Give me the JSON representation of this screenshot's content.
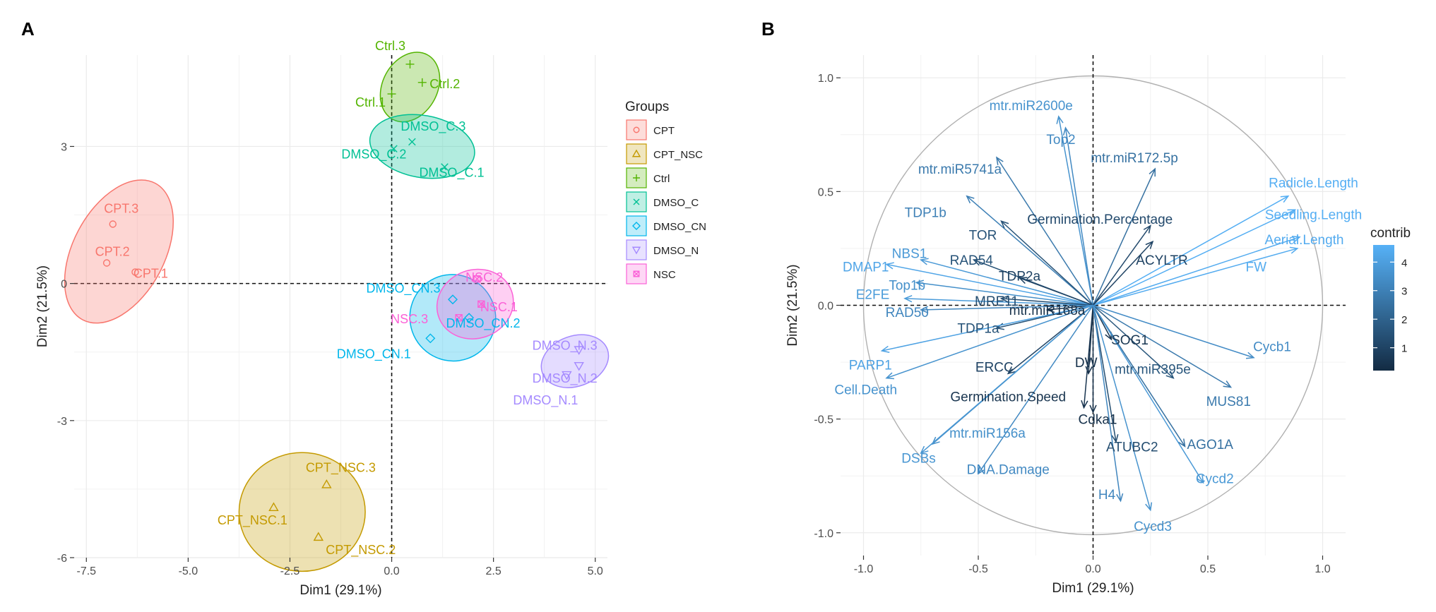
{
  "panel_labels": {
    "a": "A",
    "b": "B"
  },
  "chart_data": [
    {
      "type": "scatter",
      "panel": "A",
      "xlabel": "Dim1 (29.1%)",
      "ylabel": "Dim2 (21.5%)",
      "xlim": [
        -7.8,
        5.3
      ],
      "ylim": [
        -6.0,
        5.0
      ],
      "xticks": [
        -7.5,
        -5.0,
        -2.5,
        0.0,
        2.5,
        5.0
      ],
      "xtick_labels": [
        "-7.5",
        "-5.0",
        "-2.5",
        "0.0",
        "2.5",
        "5.0"
      ],
      "yticks": [
        -6,
        -3,
        0,
        3
      ],
      "ytick_labels": [
        "-6",
        "-3",
        "0",
        "3"
      ],
      "legend_title": "Groups",
      "groups": [
        {
          "name": "CPT",
          "color": "#F8766D",
          "shape": "circle",
          "ellipse": {
            "cx": -6.7,
            "cy": 0.7,
            "rx": 1.9,
            "ry": 1.0,
            "angle": -62
          },
          "points": [
            {
              "label": "CPT.3",
              "x": -6.85,
              "y": 1.3
            },
            {
              "label": "CPT.2",
              "x": -7.0,
              "y": 0.45
            },
            {
              "label": "CPT.1",
              "x": -6.3,
              "y": 0.25
            }
          ]
        },
        {
          "name": "CPT_NSC",
          "color": "#C49A00",
          "shape": "triangle",
          "ellipse": {
            "cx": -2.2,
            "cy": -5.0,
            "rx": 1.55,
            "ry": 1.3,
            "angle": 0
          },
          "points": [
            {
              "label": "CPT_NSC.3",
              "x": -1.6,
              "y": -4.4
            },
            {
              "label": "CPT_NSC.1",
              "x": -2.9,
              "y": -4.9
            },
            {
              "label": "CPT_NSC.2",
              "x": -1.8,
              "y": -5.55
            }
          ]
        },
        {
          "name": "Ctrl",
          "color": "#53B400",
          "shape": "plus",
          "ellipse": {
            "cx": 0.45,
            "cy": 4.3,
            "rx": 0.9,
            "ry": 0.6,
            "angle": -62
          },
          "points": [
            {
              "label": "Ctrl.3",
              "x": 0.45,
              "y": 4.8
            },
            {
              "label": "Ctrl.2",
              "x": 0.75,
              "y": 4.4
            },
            {
              "label": "Ctrl.1",
              "x": 0.0,
              "y": 4.15
            }
          ]
        },
        {
          "name": "DMSO_C",
          "color": "#00C094",
          "shape": "cross",
          "ellipse": {
            "cx": 0.75,
            "cy": 3.0,
            "rx": 1.3,
            "ry": 0.68,
            "angle": 10
          },
          "points": [
            {
              "label": "DMSO_C.3",
              "x": 0.5,
              "y": 3.1
            },
            {
              "label": "DMSO_C.2",
              "x": 0.05,
              "y": 2.95
            },
            {
              "label": "DMSO_C.1",
              "x": 1.3,
              "y": 2.55
            }
          ]
        },
        {
          "name": "DMSO_CN",
          "color": "#00B6EB",
          "shape": "diamond",
          "ellipse": {
            "cx": 1.5,
            "cy": -0.75,
            "rx": 1.05,
            "ry": 0.95,
            "angle": -30
          },
          "points": [
            {
              "label": "DMSO_CN.3",
              "x": 1.5,
              "y": -0.35
            },
            {
              "label": "DMSO_CN.2",
              "x": 1.9,
              "y": -0.75
            },
            {
              "label": "DMSO_CN.1",
              "x": 0.95,
              "y": -1.2
            }
          ]
        },
        {
          "name": "DMSO_N",
          "color": "#A58AFF",
          "shape": "triangle-down",
          "ellipse": {
            "cx": 4.5,
            "cy": -1.7,
            "rx": 0.85,
            "ry": 0.55,
            "angle": -20
          },
          "points": [
            {
              "label": "DMSO_N.3",
              "x": 4.6,
              "y": -1.45
            },
            {
              "label": "DMSO_N.2",
              "x": 4.6,
              "y": -1.8
            },
            {
              "label": "DMSO_N.1",
              "x": 4.3,
              "y": -2.0
            }
          ]
        },
        {
          "name": "NSC",
          "color": "#FB61D7",
          "shape": "square-cross",
          "ellipse": {
            "cx": 2.05,
            "cy": -0.45,
            "rx": 0.95,
            "ry": 0.75,
            "angle": -20
          },
          "points": [
            {
              "label": "NSC.2",
              "x": 2.1,
              "y": 0.1
            },
            {
              "label": "NSC.1",
              "x": 2.2,
              "y": -0.45
            },
            {
              "label": "NSC.3",
              "x": 1.65,
              "y": -0.75
            }
          ]
        }
      ]
    },
    {
      "type": "biplot",
      "panel": "B",
      "xlabel": "Dim1 (29.1%)",
      "ylabel": "Dim2 (21.5%)",
      "xlim": [
        -1.1,
        1.1
      ],
      "ylim": [
        -1.1,
        1.1
      ],
      "xticks": [
        -1.0,
        -0.5,
        0.0,
        0.5,
        1.0
      ],
      "xtick_labels": [
        "-1.0",
        "-0.5",
        "0.0",
        "0.5",
        "1.0"
      ],
      "yticks": [
        -1.0,
        -0.5,
        0.0,
        0.5,
        1.0
      ],
      "ytick_labels": [
        "-1.0",
        "-0.5",
        "0.0",
        "0.5",
        "1.0"
      ],
      "legend_title": "contrib",
      "legend_ticks": [
        1,
        2,
        3,
        4
      ],
      "legend_tick_labels": [
        "1",
        "2",
        "3",
        "4"
      ],
      "contrib_range": [
        0.2,
        4.6
      ],
      "color_low": "#132B43",
      "color_high": "#56B1F7",
      "variables": [
        {
          "name": "mtr.miR2600e",
          "x": -0.15,
          "y": 0.83,
          "contrib": 3.6,
          "lx": -0.27,
          "ly": 0.88
        },
        {
          "name": "Top2",
          "x": -0.12,
          "y": 0.78,
          "contrib": 3.3,
          "lx": -0.14,
          "ly": 0.73
        },
        {
          "name": "mtr.miR172.5p",
          "x": 0.27,
          "y": 0.6,
          "contrib": 2.5,
          "lx": 0.18,
          "ly": 0.65
        },
        {
          "name": "mtr.miR5741a",
          "x": -0.42,
          "y": 0.65,
          "contrib": 2.8,
          "lx": -0.58,
          "ly": 0.6
        },
        {
          "name": "Radicle.Length",
          "x": 0.85,
          "y": 0.48,
          "contrib": 4.5,
          "lx": 0.96,
          "ly": 0.54
        },
        {
          "name": "Seedling.Length",
          "x": 0.88,
          "y": 0.42,
          "contrib": 4.5,
          "lx": 0.96,
          "ly": 0.4
        },
        {
          "name": "Aerial.Length",
          "x": 0.9,
          "y": 0.3,
          "contrib": 4.4,
          "lx": 0.92,
          "ly": 0.29
        },
        {
          "name": "FW",
          "x": 0.89,
          "y": 0.25,
          "contrib": 4.4,
          "lx": 0.71,
          "ly": 0.17
        },
        {
          "name": "TDP1b",
          "x": -0.55,
          "y": 0.48,
          "contrib": 3.0,
          "lx": -0.73,
          "ly": 0.41
        },
        {
          "name": "Germination.Percentage",
          "x": 0.25,
          "y": 0.35,
          "contrib": 1.2,
          "lx": 0.03,
          "ly": 0.38
        },
        {
          "name": "TOR",
          "x": -0.4,
          "y": 0.37,
          "contrib": 1.5,
          "lx": -0.48,
          "ly": 0.31
        },
        {
          "name": "ACYLTR",
          "x": 0.26,
          "y": 0.28,
          "contrib": 1.0,
          "lx": 0.3,
          "ly": 0.2
        },
        {
          "name": "NBS1",
          "x": -0.75,
          "y": 0.2,
          "contrib": 3.8,
          "lx": -0.8,
          "ly": 0.23
        },
        {
          "name": "RAD54",
          "x": -0.52,
          "y": 0.2,
          "contrib": 1.5,
          "lx": -0.53,
          "ly": 0.2
        },
        {
          "name": "DMAP1",
          "x": -0.9,
          "y": 0.18,
          "contrib": 4.2,
          "lx": -0.99,
          "ly": 0.17
        },
        {
          "name": "Top1b",
          "x": -0.77,
          "y": 0.1,
          "contrib": 3.5,
          "lx": -0.81,
          "ly": 0.09
        },
        {
          "name": "TDP2a",
          "x": -0.32,
          "y": 0.12,
          "contrib": 1.0,
          "lx": -0.32,
          "ly": 0.13
        },
        {
          "name": "E2FE",
          "x": -0.82,
          "y": 0.03,
          "contrib": 3.9,
          "lx": -0.96,
          "ly": 0.05
        },
        {
          "name": "MRE11",
          "x": -0.4,
          "y": 0.03,
          "contrib": 1.3,
          "lx": -0.42,
          "ly": 0.02
        },
        {
          "name": "mtr.miR168a",
          "x": -0.2,
          "y": -0.02,
          "contrib": 0.4,
          "lx": -0.2,
          "ly": -0.02
        },
        {
          "name": "RAD50",
          "x": -0.75,
          "y": -0.02,
          "contrib": 3.2,
          "lx": -0.81,
          "ly": -0.03
        },
        {
          "name": "TDP1a",
          "x": -0.42,
          "y": -0.1,
          "contrib": 1.5,
          "lx": -0.5,
          "ly": -0.1
        },
        {
          "name": "SOG1",
          "x": 0.08,
          "y": -0.15,
          "contrib": 0.6,
          "lx": 0.16,
          "ly": -0.15
        },
        {
          "name": "Cycb1",
          "x": 0.7,
          "y": -0.23,
          "contrib": 3.4,
          "lx": 0.78,
          "ly": -0.18
        },
        {
          "name": "PARP1",
          "x": -0.92,
          "y": -0.2,
          "contrib": 4.1,
          "lx": -0.97,
          "ly": -0.26
        },
        {
          "name": "ERCC",
          "x": -0.37,
          "y": -0.3,
          "contrib": 1.0,
          "lx": -0.43,
          "ly": -0.27
        },
        {
          "name": "DW",
          "x": -0.02,
          "y": -0.3,
          "contrib": 0.4,
          "lx": -0.03,
          "ly": -0.25
        },
        {
          "name": "mtr.miR395e",
          "x": 0.35,
          "y": -0.32,
          "contrib": 1.6,
          "lx": 0.26,
          "ly": -0.28
        },
        {
          "name": "MUS81",
          "x": 0.6,
          "y": -0.36,
          "contrib": 2.8,
          "lx": 0.59,
          "ly": -0.42
        },
        {
          "name": "Cell.Death",
          "x": -0.9,
          "y": -0.32,
          "contrib": 3.6,
          "lx": -0.99,
          "ly": -0.37
        },
        {
          "name": "Germination.Speed",
          "x": -0.04,
          "y": -0.45,
          "contrib": 0.5,
          "lx": -0.37,
          "ly": -0.4
        },
        {
          "name": "Cdka1",
          "x": 0.0,
          "y": -0.47,
          "contrib": 0.4,
          "lx": 0.02,
          "ly": -0.5
        },
        {
          "name": "mtr.miR156a",
          "x": -0.7,
          "y": -0.61,
          "contrib": 3.5,
          "lx": -0.46,
          "ly": -0.56
        },
        {
          "name": "AGO1A",
          "x": 0.4,
          "y": -0.62,
          "contrib": 2.5,
          "lx": 0.51,
          "ly": -0.61
        },
        {
          "name": "ATUBC2",
          "x": 0.1,
          "y": -0.6,
          "contrib": 1.3,
          "lx": 0.17,
          "ly": -0.62
        },
        {
          "name": "DSBs",
          "x": -0.75,
          "y": -0.65,
          "contrib": 3.7,
          "lx": -0.76,
          "ly": -0.67
        },
        {
          "name": "DNA.Damage",
          "x": -0.5,
          "y": -0.74,
          "contrib": 3.3,
          "lx": -0.37,
          "ly": -0.72
        },
        {
          "name": "Cycd2",
          "x": 0.48,
          "y": -0.78,
          "contrib": 3.8,
          "lx": 0.53,
          "ly": -0.76
        },
        {
          "name": "H4",
          "x": 0.12,
          "y": -0.86,
          "contrib": 3.2,
          "lx": 0.06,
          "ly": -0.83
        },
        {
          "name": "Cycd3",
          "x": 0.25,
          "y": -0.9,
          "contrib": 3.6,
          "lx": 0.26,
          "ly": -0.97
        }
      ]
    }
  ]
}
